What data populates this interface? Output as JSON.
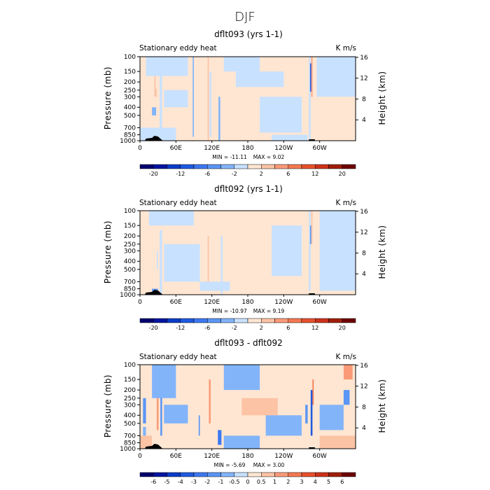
{
  "figure": {
    "title": "DJF"
  },
  "chart_data": [
    {
      "type": "heatmap",
      "title": "dflt093 (yrs 1-1)",
      "left_label": "Stationary eddy heat",
      "right_label": "K m/s",
      "ylabel": "Pressure (mb)",
      "y2label": "Height (km)",
      "xticks": [
        "0",
        "60E",
        "120E",
        "180",
        "120W",
        "60W"
      ],
      "xtick_lon": [
        0,
        60,
        120,
        180,
        240,
        300
      ],
      "xlim": [
        0,
        360
      ],
      "pressure_ticks": [
        100,
        150,
        200,
        250,
        300,
        400,
        500,
        700,
        850,
        1000
      ],
      "ylim_mb": [
        100,
        1000
      ],
      "height_ticks_km": [
        4,
        8,
        12,
        16
      ],
      "min_text": "MIN = -11.11",
      "max_text": "MAX =   9.02",
      "colorbar": {
        "labels": [
          "-20",
          "-12",
          "-6",
          "-2",
          "2",
          "6",
          "12",
          "20"
        ],
        "levels": [
          -24,
          -20,
          -16,
          -12,
          -9,
          -6,
          -4,
          -2,
          0,
          2,
          4,
          6,
          9,
          12,
          16,
          20,
          24
        ],
        "colors": [
          "#00006e",
          "#0014a0",
          "#0a3cc8",
          "#1e5ae0",
          "#3c78f0",
          "#5a96f5",
          "#82b4fa",
          "#c8e1ff",
          "#ffe6d2",
          "#fcc3a5",
          "#fa9b78",
          "#f47850",
          "#e8502d",
          "#cd321a",
          "#a01e0a",
          "#6e0000"
        ]
      },
      "background_value": 0.5,
      "features": [
        {
          "lon": [
            33,
            37
          ],
          "p": [
            1000,
            170
          ],
          "v": -2
        },
        {
          "lon": [
            20,
            27
          ],
          "p": [
            400,
            500
          ],
          "v": -3
        },
        {
          "lon": [
            20,
            31
          ],
          "p": [
            850,
            1000
          ],
          "v": -6
        },
        {
          "lon": [
            24,
            26
          ],
          "p": [
            110,
            300
          ],
          "v": 3
        },
        {
          "lon": [
            26,
            28
          ],
          "p": [
            240,
            300
          ],
          "v": 3
        },
        {
          "lon": [
            88,
            90
          ],
          "p": [
            100,
            900
          ],
          "v": -3
        },
        {
          "lon": [
            113,
            115
          ],
          "p": [
            100,
            1000
          ],
          "v": 3
        },
        {
          "lon": [
            116,
            119
          ],
          "p": [
            150,
            900
          ],
          "v": -2
        },
        {
          "lon": [
            131,
            134
          ],
          "p": [
            300,
            1000
          ],
          "v": -4
        },
        {
          "lon": [
            282,
            285
          ],
          "p": [
            100,
            1000
          ],
          "v": -2
        },
        {
          "lon": [
            284,
            286
          ],
          "p": [
            120,
            260
          ],
          "v": -10
        },
        {
          "lon": [
            286,
            288
          ],
          "p": [
            100,
            300
          ],
          "v": 4
        },
        {
          "lon": [
            10,
            80
          ],
          "p": [
            100,
            170
          ],
          "v": -1
        },
        {
          "lon": [
            140,
            200
          ],
          "p": [
            100,
            150
          ],
          "v": -1
        },
        {
          "lon": [
            160,
            240
          ],
          "p": [
            150,
            230
          ],
          "v": -1
        },
        {
          "lon": [
            295,
            360
          ],
          "p": [
            100,
            300
          ],
          "v": -1
        },
        {
          "lon": [
            40,
            80
          ],
          "p": [
            250,
            400
          ],
          "v": -1
        },
        {
          "lon": [
            200,
            270
          ],
          "p": [
            300,
            800
          ],
          "v": -1
        },
        {
          "lon": [
            0,
            60
          ],
          "p": [
            700,
            1000
          ],
          "v": -1
        },
        {
          "lon": [
            220,
            280
          ],
          "p": [
            850,
            1000
          ],
          "v": -1
        }
      ]
    },
    {
      "type": "heatmap",
      "title": "dflt092 (yrs 1-1)",
      "left_label": "Stationary eddy heat",
      "right_label": "K m/s",
      "ylabel": "Pressure (mb)",
      "y2label": "Height (km)",
      "xticks": [
        "0",
        "60E",
        "120E",
        "180",
        "120W",
        "60W"
      ],
      "xtick_lon": [
        0,
        60,
        120,
        180,
        240,
        300
      ],
      "xlim": [
        0,
        360
      ],
      "pressure_ticks": [
        100,
        150,
        200,
        250,
        300,
        400,
        500,
        700,
        850,
        1000
      ],
      "ylim_mb": [
        100,
        1000
      ],
      "height_ticks_km": [
        4,
        8,
        12,
        16
      ],
      "min_text": "MIN = -10.97",
      "max_text": "MAX =   9.19",
      "colorbar": {
        "labels": [
          "-20",
          "-12",
          "-6",
          "-2",
          "2",
          "6",
          "12",
          "20"
        ],
        "levels": [
          -24,
          -20,
          -16,
          -12,
          -9,
          -6,
          -4,
          -2,
          0,
          2,
          4,
          6,
          9,
          12,
          16,
          20,
          24
        ],
        "colors": [
          "#00006e",
          "#0014a0",
          "#0a3cc8",
          "#1e5ae0",
          "#3c78f0",
          "#5a96f5",
          "#82b4fa",
          "#c8e1ff",
          "#ffe6d2",
          "#fcc3a5",
          "#fa9b78",
          "#f47850",
          "#e8502d",
          "#cd321a",
          "#a01e0a",
          "#6e0000"
        ]
      },
      "background_value": 0.5,
      "features": [
        {
          "lon": [
            33,
            37
          ],
          "p": [
            1000,
            170
          ],
          "v": -2
        },
        {
          "lon": [
            20,
            30
          ],
          "p": [
            850,
            1000
          ],
          "v": -6
        },
        {
          "lon": [
            28,
            30
          ],
          "p": [
            300,
            500
          ],
          "v": -2
        },
        {
          "lon": [
            135,
            138
          ],
          "p": [
            200,
            1000
          ],
          "v": -2
        },
        {
          "lon": [
            113,
            115
          ],
          "p": [
            200,
            700
          ],
          "v": 2
        },
        {
          "lon": [
            282,
            285
          ],
          "p": [
            100,
            900
          ],
          "v": -2
        },
        {
          "lon": [
            284,
            286
          ],
          "p": [
            150,
            250
          ],
          "v": -6
        },
        {
          "lon": [
            286,
            288
          ],
          "p": [
            100,
            250
          ],
          "v": 2
        },
        {
          "lon": [
            15,
            90
          ],
          "p": [
            100,
            150
          ],
          "v": -1
        },
        {
          "lon": [
            40,
            100
          ],
          "p": [
            250,
            700
          ],
          "v": -1
        },
        {
          "lon": [
            220,
            270
          ],
          "p": [
            150,
            600
          ],
          "v": -1
        },
        {
          "lon": [
            300,
            360
          ],
          "p": [
            100,
            900
          ],
          "v": -1
        },
        {
          "lon": [
            100,
            150
          ],
          "p": [
            700,
            900
          ],
          "v": -1
        }
      ]
    },
    {
      "type": "heatmap",
      "title": "dflt093 - dflt092",
      "left_label": "Stationary eddy heat",
      "right_label": "K m/s",
      "ylabel": "Pressure (mb)",
      "y2label": "Height (km)",
      "xticks": [
        "0",
        "60E",
        "120E",
        "180",
        "120W",
        "60W"
      ],
      "xtick_lon": [
        0,
        60,
        120,
        180,
        240,
        300
      ],
      "xlim": [
        0,
        360
      ],
      "pressure_ticks": [
        100,
        150,
        200,
        250,
        300,
        400,
        500,
        700,
        850,
        1000
      ],
      "ylim_mb": [
        100,
        1000
      ],
      "height_ticks_km": [
        4,
        8,
        12,
        16
      ],
      "min_text": "MIN =  -5.69",
      "max_text": "MAX =   3.00",
      "colorbar": {
        "labels": [
          "-6",
          "-5",
          "-4",
          "-3",
          "-2",
          "-1",
          "-0.5",
          "0",
          "0.5",
          "1",
          "2",
          "3",
          "4",
          "5",
          "6"
        ],
        "levels": [
          -7,
          -6,
          -5,
          -4,
          -3,
          -2,
          -1,
          -0.5,
          0,
          0.5,
          1,
          2,
          3,
          4,
          5,
          6,
          7
        ],
        "colors": [
          "#00006e",
          "#0014a0",
          "#0a3cc8",
          "#1e5ae0",
          "#3c78f0",
          "#5a96f5",
          "#82b4fa",
          "#c8e1ff",
          "#ffe6d2",
          "#fcc3a5",
          "#fa9b78",
          "#f47850",
          "#e8502d",
          "#cd321a",
          "#a01e0a",
          "#6e0000"
        ]
      },
      "background_value": 0.2,
      "features": [
        {
          "lon": [
            5,
            10
          ],
          "p": [
            250,
            500
          ],
          "v": -2
        },
        {
          "lon": [
            5,
            10
          ],
          "p": [
            550,
            700
          ],
          "v": -1
        },
        {
          "lon": [
            28,
            31
          ],
          "p": [
            200,
            600
          ],
          "v": 1.5
        },
        {
          "lon": [
            34,
            37
          ],
          "p": [
            200,
            700
          ],
          "v": -1.5
        },
        {
          "lon": [
            115,
            118
          ],
          "p": [
            150,
            500
          ],
          "v": 1.5
        },
        {
          "lon": [
            98,
            100
          ],
          "p": [
            400,
            700
          ],
          "v": -2
        },
        {
          "lon": [
            130,
            136
          ],
          "p": [
            600,
            900
          ],
          "v": -3
        },
        {
          "lon": [
            285,
            288
          ],
          "p": [
            200,
            700
          ],
          "v": -4
        },
        {
          "lon": [
            288,
            290
          ],
          "p": [
            150,
            300
          ],
          "v": 2
        },
        {
          "lon": [
            276,
            280
          ],
          "p": [
            300,
            500
          ],
          "v": -1.5
        },
        {
          "lon": [
            340,
            355
          ],
          "p": [
            100,
            150
          ],
          "v": 1.5
        },
        {
          "lon": [
            340,
            350
          ],
          "p": [
            200,
            300
          ],
          "v": -2
        },
        {
          "lon": [
            20,
            60
          ],
          "p": [
            100,
            250
          ],
          "v": -0.7
        },
        {
          "lon": [
            40,
            80
          ],
          "p": [
            300,
            500
          ],
          "v": -0.7
        },
        {
          "lon": [
            140,
            200
          ],
          "p": [
            100,
            200
          ],
          "v": -0.7
        },
        {
          "lon": [
            170,
            230
          ],
          "p": [
            250,
            400
          ],
          "v": 0.7
        },
        {
          "lon": [
            210,
            270
          ],
          "p": [
            400,
            700
          ],
          "v": -0.7
        },
        {
          "lon": [
            140,
            200
          ],
          "p": [
            700,
            1000
          ],
          "v": -0.7
        },
        {
          "lon": [
            300,
            340
          ],
          "p": [
            300,
            600
          ],
          "v": -0.7
        },
        {
          "lon": [
            300,
            360
          ],
          "p": [
            700,
            1000
          ],
          "v": 0.7
        },
        {
          "lon": [
            0,
            20
          ],
          "p": [
            700,
            1000
          ],
          "v": 0.7
        }
      ]
    }
  ]
}
